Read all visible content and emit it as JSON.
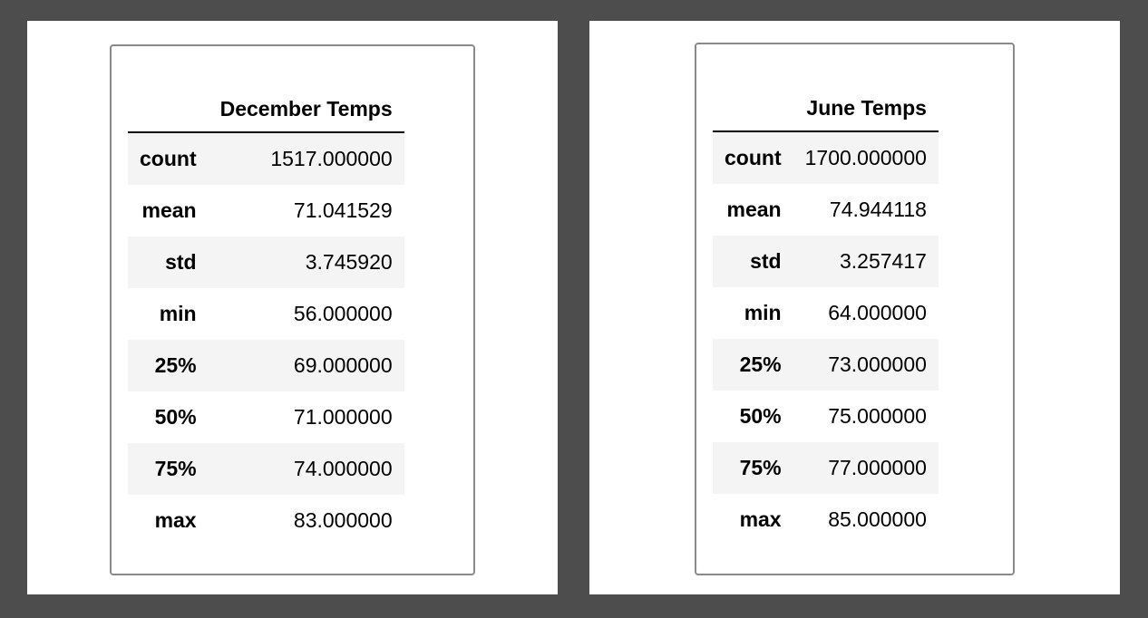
{
  "tables": [
    {
      "column_header": "December Temps",
      "rows": [
        {
          "label": "count",
          "value": "1517.000000"
        },
        {
          "label": "mean",
          "value": "71.041529"
        },
        {
          "label": "std",
          "value": "3.745920"
        },
        {
          "label": "min",
          "value": "56.000000"
        },
        {
          "label": "25%",
          "value": "69.000000"
        },
        {
          "label": "50%",
          "value": "71.000000"
        },
        {
          "label": "75%",
          "value": "74.000000"
        },
        {
          "label": "max",
          "value": "83.000000"
        }
      ]
    },
    {
      "column_header": "June Temps",
      "rows": [
        {
          "label": "count",
          "value": "1700.000000"
        },
        {
          "label": "mean",
          "value": "74.944118"
        },
        {
          "label": "std",
          "value": "3.257417"
        },
        {
          "label": "min",
          "value": "64.000000"
        },
        {
          "label": "25%",
          "value": "73.000000"
        },
        {
          "label": "50%",
          "value": "75.000000"
        },
        {
          "label": "75%",
          "value": "77.000000"
        },
        {
          "label": "max",
          "value": "85.000000"
        }
      ]
    }
  ],
  "colors": {
    "background": "#4d4d4d",
    "panel": "#ffffff",
    "frame_border": "#8a8a8a",
    "alt_row": "#f4f4f4"
  }
}
